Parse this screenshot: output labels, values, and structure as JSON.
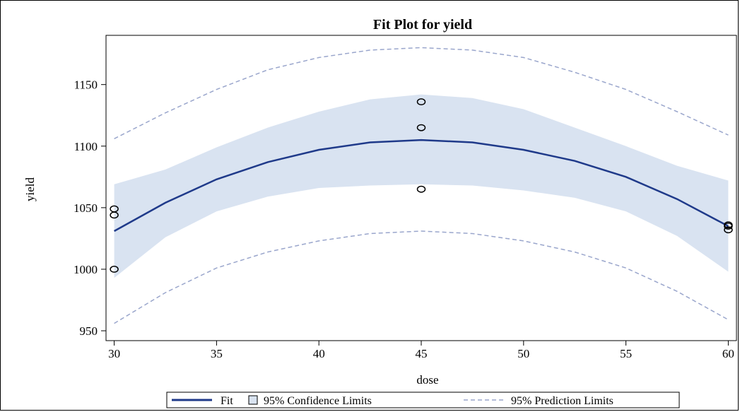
{
  "chart_data": {
    "type": "line",
    "title": "Fit Plot for yield",
    "xlabel": "dose",
    "ylabel": "yield",
    "xlim": [
      29.6,
      60.4
    ],
    "ylim": [
      942,
      1190
    ],
    "xticks": [
      30,
      35,
      40,
      45,
      50,
      55,
      60
    ],
    "yticks": [
      950,
      1000,
      1050,
      1100,
      1150
    ],
    "grid": false,
    "legend_position": "bottom",
    "colors": {
      "fit": "#1f3a8a",
      "confidence": "#d9e3f1",
      "prediction": "#9aa6cc",
      "points": "#000000"
    },
    "fit": {
      "name": "Fit",
      "x": [
        30,
        32.5,
        35,
        37.5,
        40,
        42.5,
        45,
        47.5,
        50,
        52.5,
        55,
        57.5,
        60
      ],
      "y": [
        1031,
        1054,
        1073,
        1087,
        1097,
        1103,
        1105,
        1103,
        1097,
        1088,
        1075,
        1057,
        1035
      ]
    },
    "confidence_limits": {
      "name": "95% Confidence Limits",
      "x": [
        30,
        32.5,
        35,
        37.5,
        40,
        42.5,
        45,
        47.5,
        50,
        52.5,
        55,
        57.5,
        60
      ],
      "upper": [
        1069,
        1081,
        1099,
        1115,
        1128,
        1138,
        1142,
        1139,
        1130,
        1115,
        1100,
        1084,
        1072
      ],
      "lower": [
        993,
        1026,
        1047,
        1059,
        1066,
        1068,
        1069,
        1068,
        1064,
        1058,
        1047,
        1027,
        998
      ]
    },
    "prediction_limits": {
      "name": "95% Prediction Limits",
      "x": [
        30,
        32.5,
        35,
        37.5,
        40,
        42.5,
        45,
        47.5,
        50,
        52.5,
        55,
        57.5,
        60
      ],
      "upper": [
        1106,
        1127,
        1146,
        1162,
        1172,
        1178,
        1180,
        1178,
        1172,
        1160,
        1146,
        1128,
        1109
      ],
      "lower": [
        956,
        981,
        1001,
        1014,
        1023,
        1029,
        1031,
        1029,
        1023,
        1014,
        1001,
        982,
        959
      ]
    },
    "observations": {
      "x": [
        30,
        30,
        30,
        45,
        45,
        45,
        60,
        60,
        60
      ],
      "y": [
        1049,
        1044,
        1000,
        1136,
        1115,
        1065,
        1036,
        1035,
        1032
      ]
    }
  }
}
